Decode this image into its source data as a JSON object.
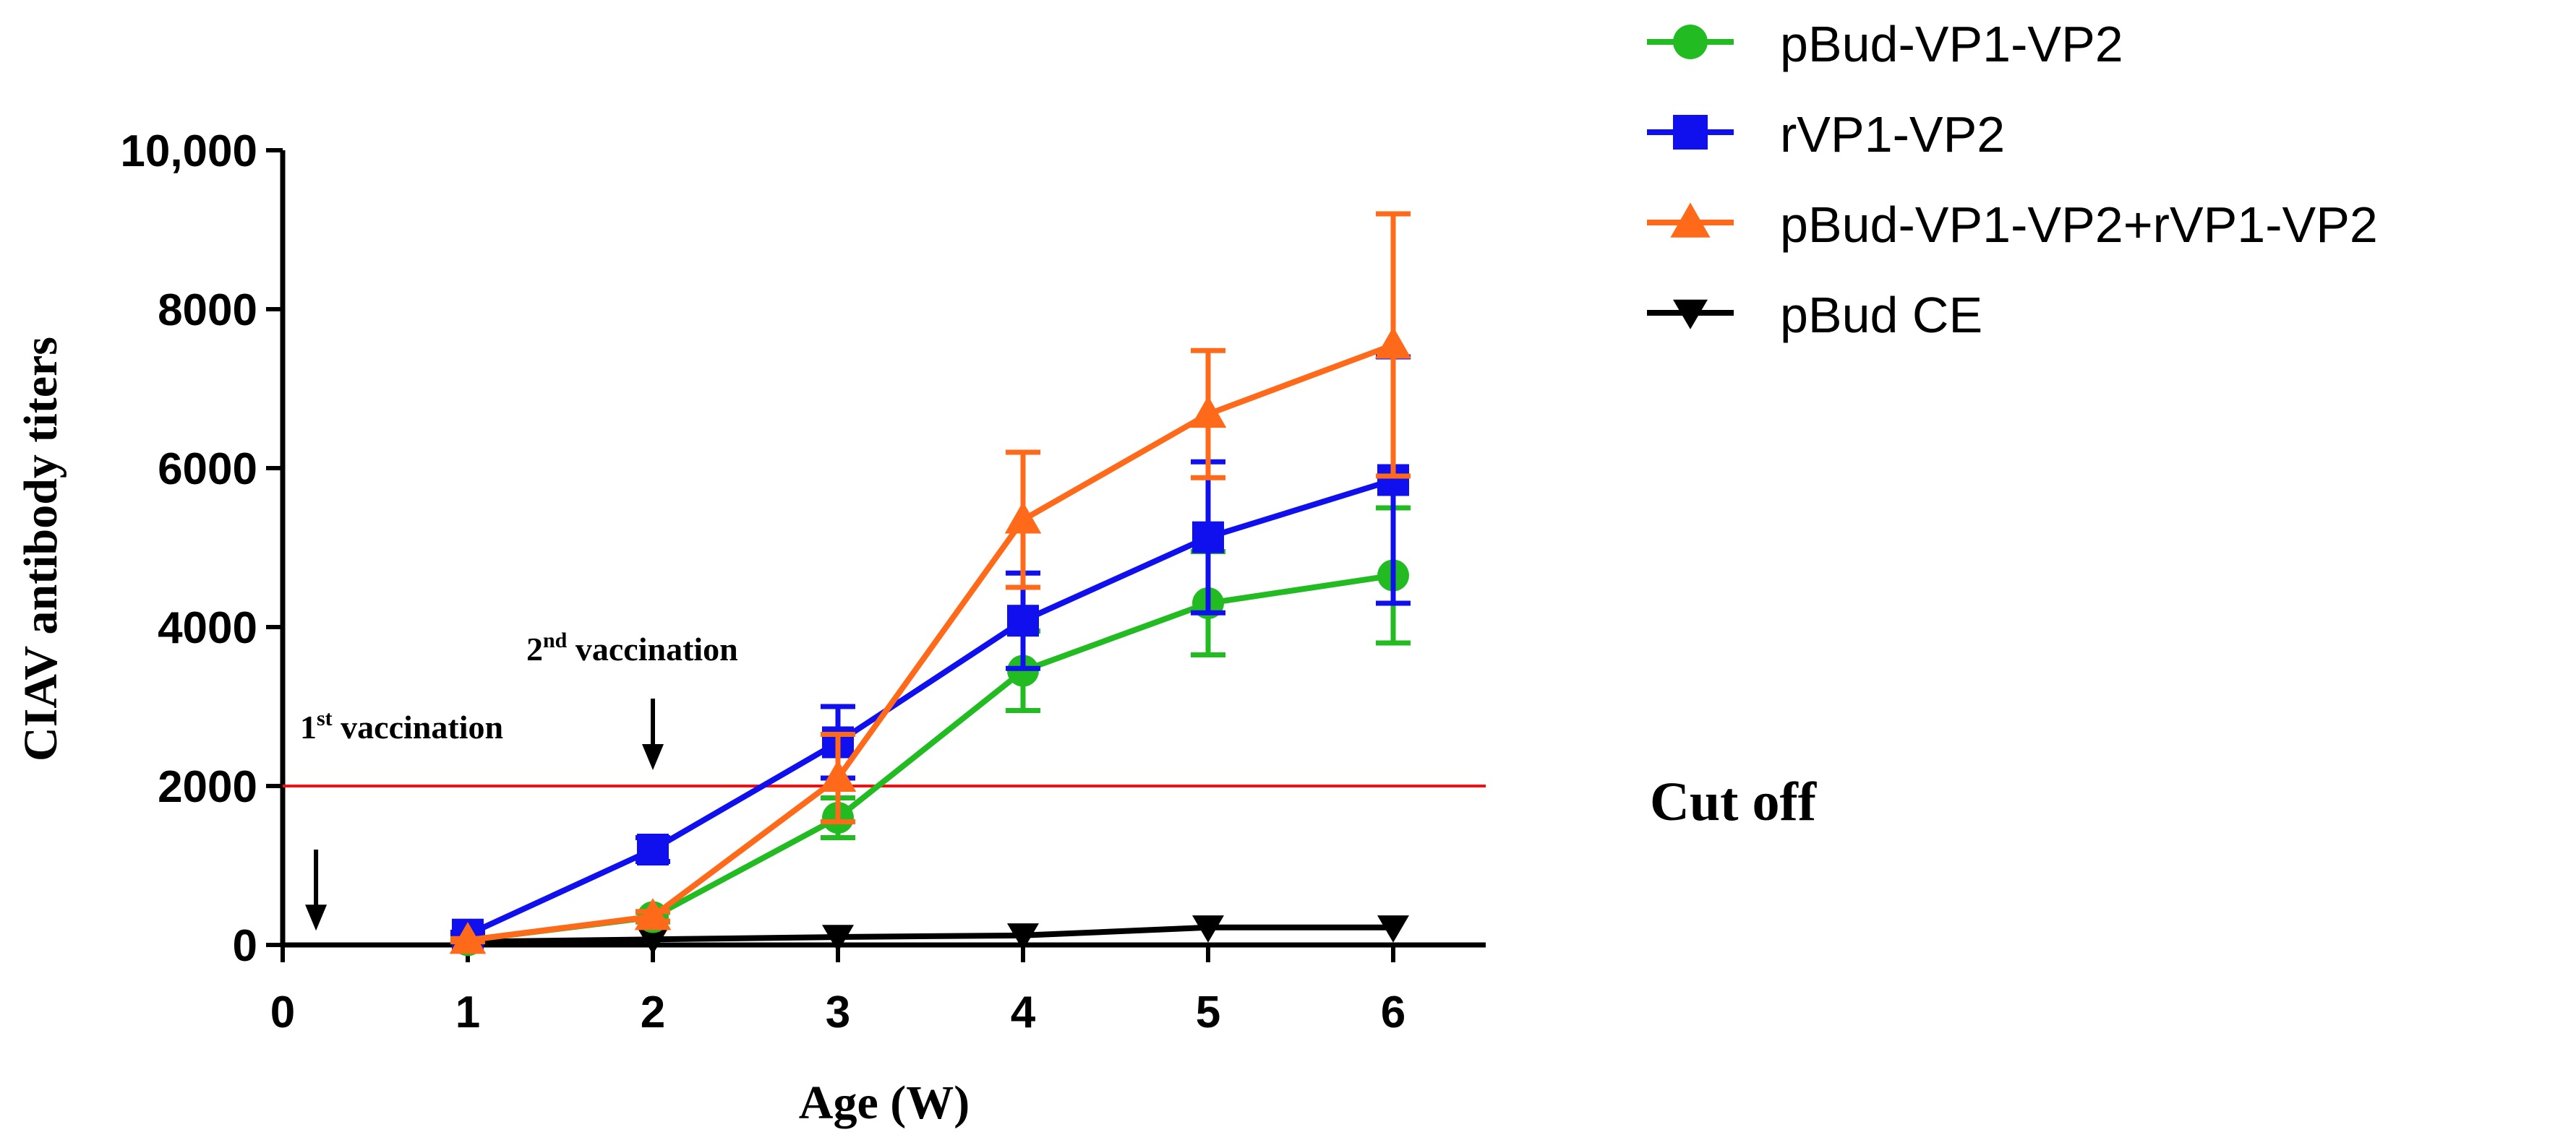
{
  "chart_data": {
    "type": "line",
    "title": "",
    "xlabel": "Age (W)",
    "ylabel": "CIAV antibody titers",
    "xlim": [
      0,
      6.5
    ],
    "ylim": [
      0,
      10000
    ],
    "x_ticks": [
      0,
      1,
      2,
      3,
      4,
      5,
      6
    ],
    "x_tick_labels": [
      "0",
      "1",
      "2",
      "3",
      "4",
      "5",
      "6"
    ],
    "y_ticks": [
      0,
      2000,
      4000,
      6000,
      8000,
      10000
    ],
    "y_tick_labels": [
      "0",
      "2000",
      "4000",
      "6000",
      "8000",
      "10,000"
    ],
    "x": [
      1,
      2,
      3,
      4,
      5,
      6
    ],
    "series": [
      {
        "name": "pBud-VP1-VP2",
        "color": "#22bb22",
        "marker": "circle",
        "values": [
          60,
          350,
          1600,
          3450,
          4300,
          4650
        ],
        "errors": [
          20,
          60,
          250,
          500,
          650,
          850
        ]
      },
      {
        "name": "rVP1-VP2",
        "color": "#1010ee",
        "marker": "square",
        "values": [
          130,
          1200,
          2550,
          4080,
          5130,
          5850
        ],
        "errors": [
          30,
          150,
          450,
          600,
          950,
          1550
        ]
      },
      {
        "name": "pBud-VP1-VP2+rVP1-VP2",
        "color": "#ff6a1a",
        "marker": "triangle-up",
        "values": [
          60,
          360,
          2100,
          5350,
          6680,
          7550
        ],
        "errors": [
          20,
          60,
          550,
          850,
          800,
          1650
        ]
      },
      {
        "name": "pBud CE",
        "color": "#000000",
        "marker": "triangle-down",
        "values": [
          40,
          70,
          100,
          120,
          220,
          220
        ],
        "errors": [
          0,
          0,
          0,
          0,
          0,
          0
        ]
      }
    ],
    "reference_line": {
      "value": 2000,
      "label": "Cut off",
      "color": "#ee1111"
    },
    "annotations": [
      {
        "base": "1",
        "sup": "st",
        "rest": " vaccination",
        "x": 0.18,
        "arrow_from": 1200,
        "arrow_to": 180
      },
      {
        "base": "2",
        "sup": "nd",
        "rest": " vaccination",
        "x": 2.0,
        "arrow_from": 3100,
        "arrow_to": 2200
      }
    ],
    "legend_position": "top-right",
    "grid": false
  }
}
